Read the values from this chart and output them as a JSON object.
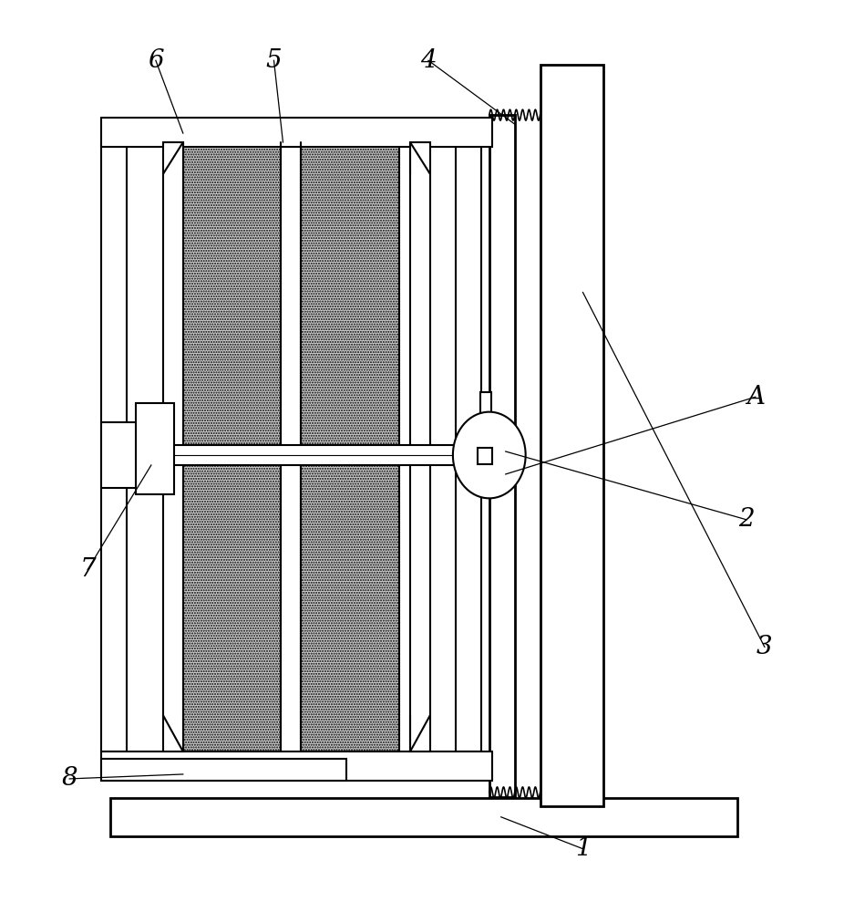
{
  "bg_color": "#ffffff",
  "line_color": "#000000",
  "fig_width": 9.26,
  "fig_height": 10.0,
  "lw_main": 1.5,
  "lw_thick": 2.0,
  "lw_thin": 0.8,
  "font_size": 20
}
